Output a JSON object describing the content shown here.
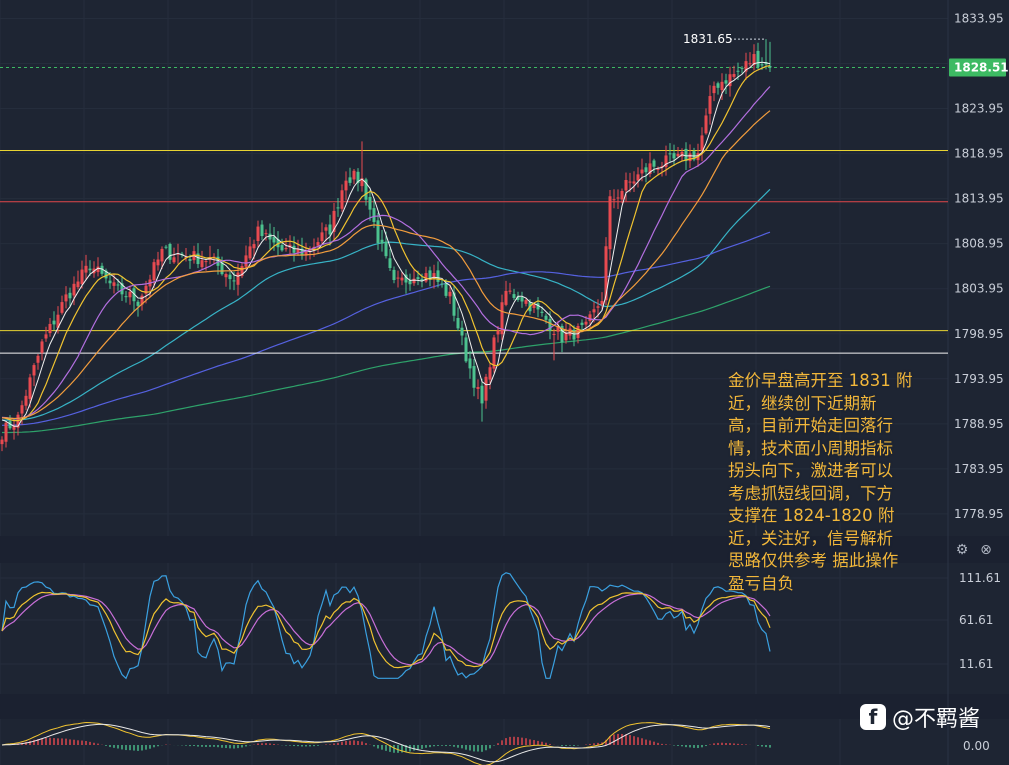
{
  "price_axis": {
    "labels": [
      "1833.95",
      "1828.95",
      "1823.95",
      "1818.95",
      "1813.95",
      "1808.95",
      "1803.95",
      "1798.95",
      "1793.95",
      "1788.95",
      "1783.95",
      "1778.95"
    ],
    "current_price": "1828.51",
    "high_label": "1831.65"
  },
  "osc_axis": {
    "labels": [
      "111.61",
      "61.61",
      "11.61"
    ]
  },
  "macd_axis": {
    "labels": [
      "0.00"
    ]
  },
  "note_lines": [
    "金价早盘高开至 1831 附",
    "近，继续创下近期新",
    "高，目前开始走回落行",
    "情，技术面小周期指标",
    "拐头向下，激进者可以",
    "考虑抓短线回调，下方",
    "支撑在 1824-1820 附",
    "近，关注好，信号解析",
    "思路仅供参考 据此操作",
    "盈亏自负"
  ],
  "watermark": {
    "logo": "f",
    "text": "@不羁酱"
  },
  "icons": {
    "settings": "gear-icon",
    "close": "close-icon"
  },
  "colors": {
    "background": "#1e2533",
    "up": "#e84a50",
    "down": "#4cc28f",
    "ma_short": "#f0f0f0",
    "ma_mid": "#f0c330",
    "ma_purple": "#b36fe0",
    "ma_orange": "#f29d3d",
    "ma_cyan": "#37b3c6",
    "ma_blue": "#5561e0",
    "ma_green": "#2ea26a",
    "level_yellow": "#e8d332",
    "level_red": "#e0474a",
    "level_white": "#f4f4f4",
    "price_tag": "#3dba63"
  },
  "chart_data": {
    "type": "candlestick",
    "ylim": [
      1776.5,
      1836.0
    ],
    "y_ticks": [
      1833.95,
      1828.95,
      1823.95,
      1818.95,
      1813.95,
      1808.95,
      1803.95,
      1798.95,
      1793.95,
      1788.95,
      1783.95,
      1778.95
    ],
    "last_price": 1828.51,
    "session_high": 1831.65,
    "levels": [
      {
        "value": 1819.3,
        "color": "yellow"
      },
      {
        "value": 1813.6,
        "color": "red"
      },
      {
        "value": 1799.3,
        "color": "yellow"
      },
      {
        "value": 1796.8,
        "color": "white"
      }
    ],
    "anchors": [
      [
        0,
        1788.0
      ],
      [
        4,
        1789.6
      ],
      [
        10,
        1797.8
      ],
      [
        16,
        1803.0
      ],
      [
        22,
        1806.6
      ],
      [
        28,
        1804.0
      ],
      [
        34,
        1802.6
      ],
      [
        40,
        1808.0
      ],
      [
        46,
        1807.6
      ],
      [
        52,
        1807.2
      ],
      [
        58,
        1805.0
      ],
      [
        64,
        1810.2
      ],
      [
        70,
        1808.2
      ],
      [
        76,
        1808.0
      ],
      [
        82,
        1810.6
      ],
      [
        86,
        1816.5
      ],
      [
        90,
        1816.0
      ],
      [
        94,
        1809.6
      ],
      [
        98,
        1804.3
      ],
      [
        104,
        1805.7
      ],
      [
        108,
        1805.3
      ],
      [
        112,
        1803.0
      ],
      [
        116,
        1796.5
      ],
      [
        120,
        1791.0
      ],
      [
        122,
        1796.0
      ],
      [
        126,
        1803.6
      ],
      [
        130,
        1803.0
      ],
      [
        136,
        1800.5
      ],
      [
        140,
        1798.6
      ],
      [
        146,
        1799.5
      ],
      [
        150,
        1803.0
      ],
      [
        152,
        1813.6
      ],
      [
        156,
        1815.4
      ],
      [
        162,
        1817.5
      ],
      [
        168,
        1818.2
      ],
      [
        174,
        1819.0
      ],
      [
        178,
        1826.5
      ],
      [
        184,
        1828.0
      ],
      [
        188,
        1829.6
      ],
      [
        192,
        1828.51
      ]
    ],
    "osc_ylim": [
      -5,
      135
    ],
    "macd_ylim": [
      -3,
      3
    ]
  }
}
